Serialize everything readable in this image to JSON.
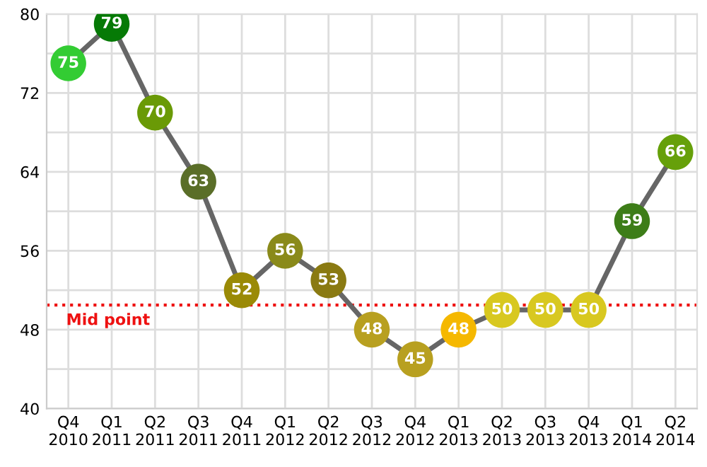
{
  "chart_data": {
    "type": "line",
    "categories": [
      "Q4\n2010",
      "Q1\n2011",
      "Q2\n2011",
      "Q3\n2011",
      "Q4\n2011",
      "Q1\n2012",
      "Q2\n2012",
      "Q3\n2012",
      "Q4\n2012",
      "Q1\n2013",
      "Q2\n2013",
      "Q3\n2013",
      "Q4\n2013",
      "Q1\n2014",
      "Q2\n2014"
    ],
    "series": [
      {
        "color": "#666666",
        "values": [
          75,
          79,
          70,
          63,
          52,
          56,
          53,
          48,
          45,
          48,
          50,
          50,
          50,
          59,
          66
        ],
        "colors": [
          "#33cc33",
          "#067a06",
          "#6a9a06",
          "#5a6e28",
          "#9a8a06",
          "#8a8a1a",
          "#8a7a12",
          "#b8a020",
          "#b8a020",
          "#f5b800",
          "#d8c820",
          "#d8c820",
          "#d8c820",
          "#3d7d18",
          "#66a00a"
        ]
      }
    ],
    "marker": "circle",
    "data_labels": true,
    "ylim": [
      40,
      80
    ],
    "yticks": [
      40,
      {
        "value": 44,
        "label": null
      },
      48,
      {
        "value": 52,
        "label": null
      },
      56,
      {
        "value": 60,
        "label": null
      },
      64,
      {
        "value": 68,
        "label": null
      },
      72,
      {
        "value": 76,
        "label": null
      },
      80
    ],
    "grid": true,
    "ref_lines": [
      {
        "axis": "y",
        "value": 50.5,
        "label": "Mid point",
        "color": "#ee1111",
        "line_style": "dotted"
      }
    ]
  }
}
